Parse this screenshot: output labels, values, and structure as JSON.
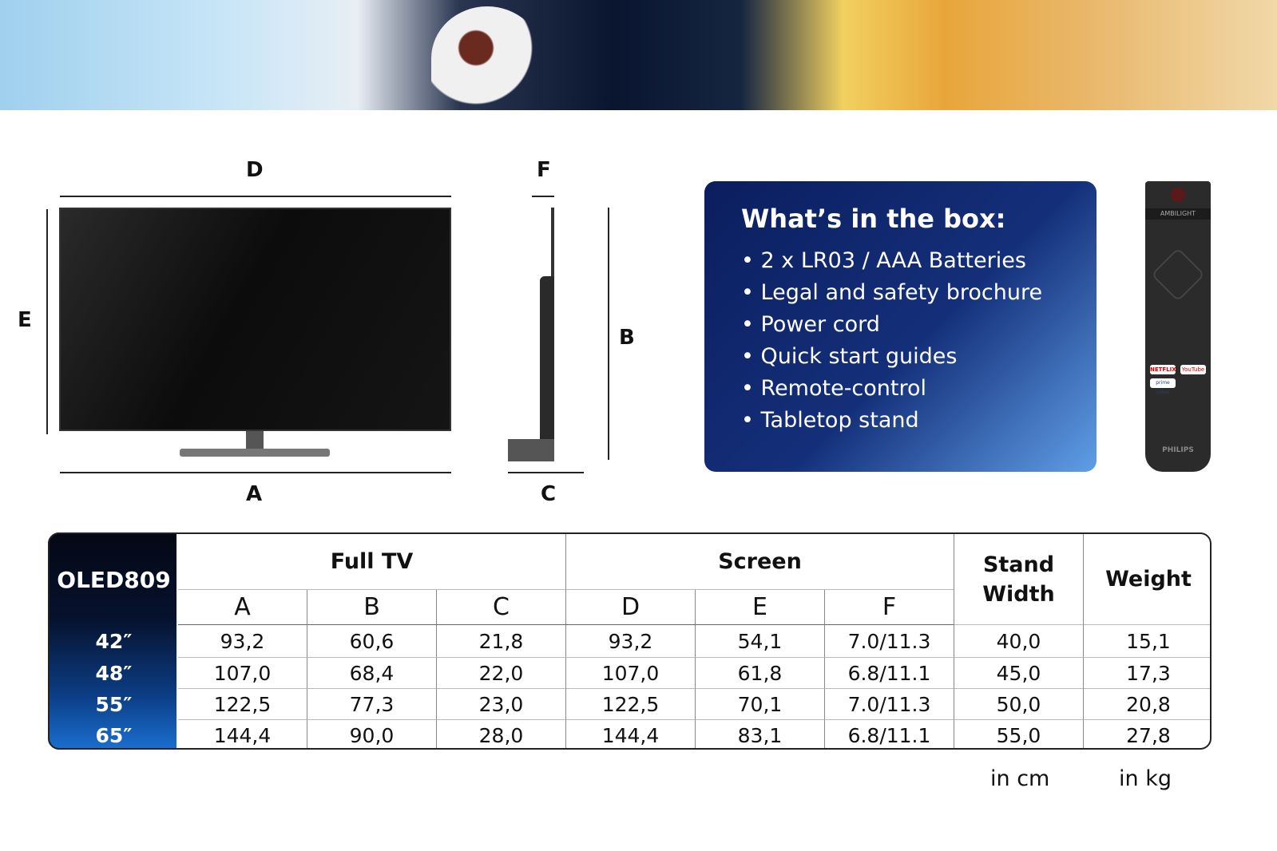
{
  "diagram": {
    "labels": {
      "A": "A",
      "B": "B",
      "C": "C",
      "D": "D",
      "E": "E",
      "F": "F"
    }
  },
  "box": {
    "title": "What’s in the box:",
    "items": [
      "2 x LR03 / AAA Batteries",
      "Legal and safety brochure",
      "Power cord",
      "Quick start guides",
      "Remote-control",
      "Tabletop stand"
    ]
  },
  "remote": {
    "ambilight": "AMBILIGHT",
    "netflix": "NETFLIX",
    "youtube": "YouTube",
    "prime": "prime video",
    "brand": "PHILIPS"
  },
  "table": {
    "model": "OLED809",
    "groups": [
      "Full TV",
      "Screen",
      "Stand Width",
      "Weight"
    ],
    "subheaders": [
      "A",
      "B",
      "C",
      "D",
      "E",
      "F"
    ],
    "rows": [
      {
        "size": "42″",
        "values": [
          "93,2",
          "60,6",
          "21,8",
          "93,2",
          "54,1",
          "7.0/11.3",
          "40,0",
          "15,1"
        ]
      },
      {
        "size": "48″",
        "values": [
          "107,0",
          "68,4",
          "22,0",
          "107,0",
          "61,8",
          "6.8/11.1",
          "45,0",
          "17,3"
        ]
      },
      {
        "size": "55″",
        "values": [
          "122,5",
          "77,3",
          "23,0",
          "122,5",
          "70,1",
          "7.0/11.3",
          "50,0",
          "20,8"
        ]
      },
      {
        "size": "65″",
        "values": [
          "144,4",
          "90,0",
          "28,0",
          "144,4",
          "83,1",
          "6.8/11.1",
          "55,0",
          "27,8"
        ]
      }
    ],
    "units": [
      "in cm",
      "in kg"
    ]
  },
  "colors": {
    "box_start": "#0b1e5e",
    "box_end": "#5f9fe6"
  }
}
